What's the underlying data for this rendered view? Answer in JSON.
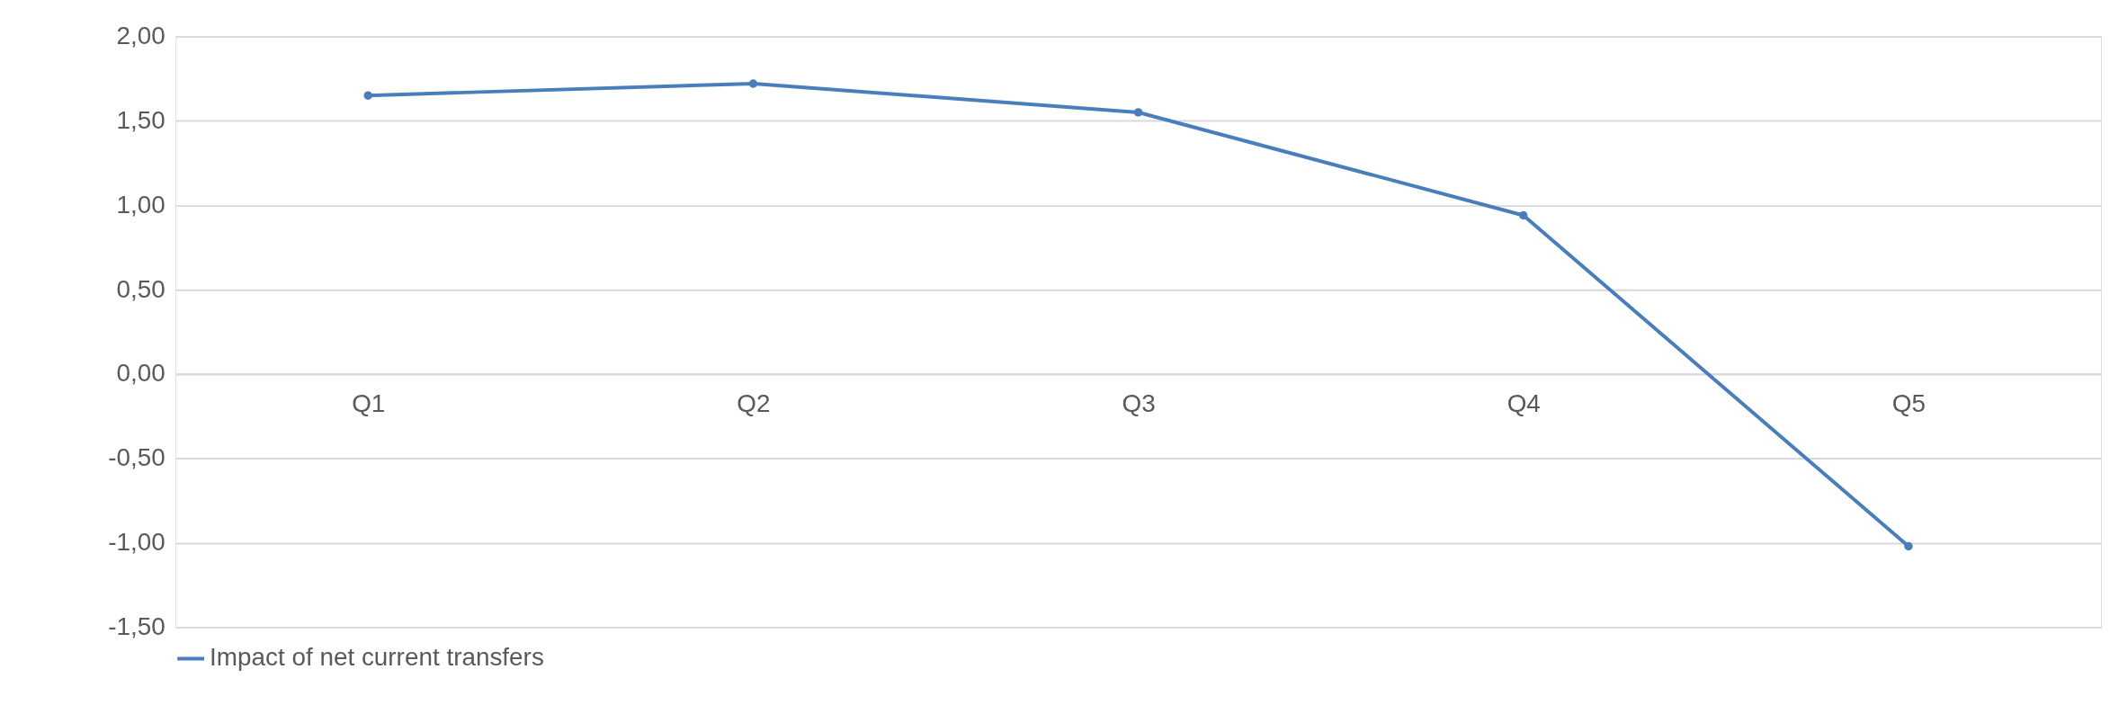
{
  "chart_data": {
    "type": "line",
    "categories": [
      "Q1",
      "Q2",
      "Q3",
      "Q4",
      "Q5"
    ],
    "series": [
      {
        "name": "Impact of net current transfers",
        "color": "#4a7ebb",
        "values": [
          1.65,
          1.72,
          1.55,
          0.94,
          -1.02
        ]
      }
    ],
    "ylim": [
      -1.5,
      2.0
    ],
    "yticks": [
      {
        "value": -1.5,
        "label": "-1,50"
      },
      {
        "value": -1.0,
        "label": "-1,00"
      },
      {
        "value": -0.5,
        "label": "-0,50"
      },
      {
        "value": 0.0,
        "label": "0,00"
      },
      {
        "value": 0.5,
        "label": "0,50"
      },
      {
        "value": 1.0,
        "label": "1,00"
      },
      {
        "value": 1.5,
        "label": "1,50"
      },
      {
        "value": 2.0,
        "label": "2,00"
      }
    ],
    "grid": "y",
    "legend": "bottom",
    "marker": "circle",
    "line_style": "solid"
  }
}
